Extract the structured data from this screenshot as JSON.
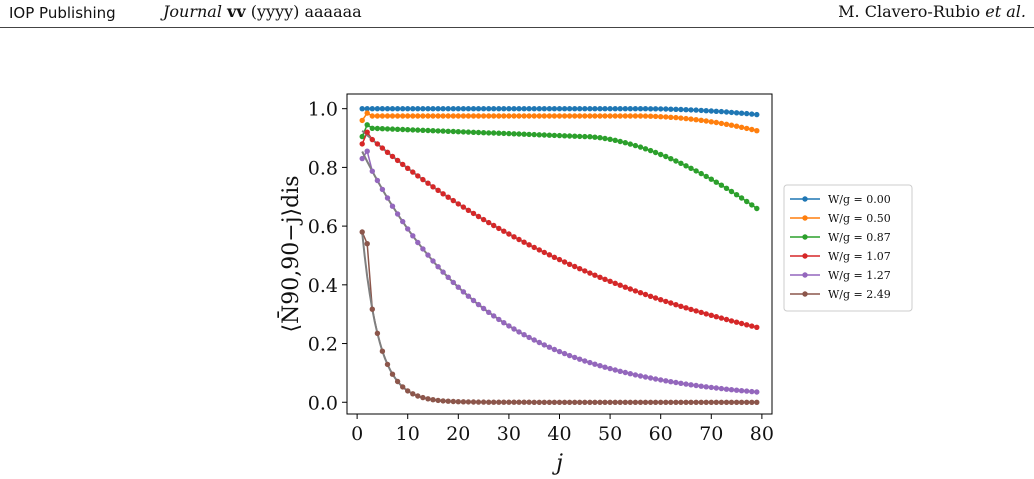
{
  "header": {
    "publisher": "IOP Publishing",
    "journal_name": "Journal",
    "journal_volume": "vv",
    "journal_rest": "(yyyy) aaaaaa",
    "authors": "M. Clavero-Rubio",
    "etal": "et al."
  },
  "chart_data": {
    "type": "line",
    "xlabel": "j",
    "ylabel": "⟨N̄90,90−j⟩dis",
    "xlim": [
      -2,
      82
    ],
    "ylim": [
      -0.04,
      1.05
    ],
    "xticks": [
      0,
      10,
      20,
      30,
      40,
      50,
      60,
      70,
      80
    ],
    "yticks": [
      0.0,
      0.2,
      0.4,
      0.6,
      0.8,
      1.0
    ],
    "xtick_labels": [
      "0",
      "10",
      "20",
      "30",
      "40",
      "50",
      "60",
      "70",
      "80"
    ],
    "ytick_labels": [
      "0.0",
      "0.2",
      "0.4",
      "0.6",
      "0.8",
      "1.0"
    ],
    "legend_position": "outside-right",
    "grid": false,
    "series": [
      {
        "name": "W/g = 0.00",
        "color": "#1f77b4",
        "curve": "flat",
        "params": {
          "v": 1.0,
          "tail": 0.02
        }
      },
      {
        "name": "W/g = 0.50",
        "color": "#ff7f0e",
        "curve": "flat",
        "params": {
          "v": 0.975,
          "first": [
            0.96,
            0.985
          ],
          "tail": 0.05
        }
      },
      {
        "name": "W/g = 0.87",
        "color": "#2ca02c",
        "curve": "bend",
        "params": {
          "first": [
            0.905,
            0.945
          ],
          "v": 0.935,
          "mid": 0.905,
          "end": 0.66
        }
      },
      {
        "name": "W/g = 1.07",
        "color": "#d62728",
        "curve": "exp",
        "params": {
          "a": 0.94,
          "k": 0.0165,
          "first": [
            0.88,
            0.92
          ]
        }
      },
      {
        "name": "W/g = 1.27",
        "color": "#9467bd",
        "curve": "exp",
        "params": {
          "a": 0.89,
          "k": 0.041,
          "first": [
            0.83,
            0.855
          ]
        }
      },
      {
        "name": "W/g = 2.49",
        "color": "#8c564b",
        "curve": "exp",
        "params": {
          "a": 0.78,
          "k": 0.3,
          "first": [
            0.58,
            0.54
          ]
        }
      }
    ],
    "fit_color": "#7f7f7f",
    "x_range": [
      1,
      79
    ]
  }
}
